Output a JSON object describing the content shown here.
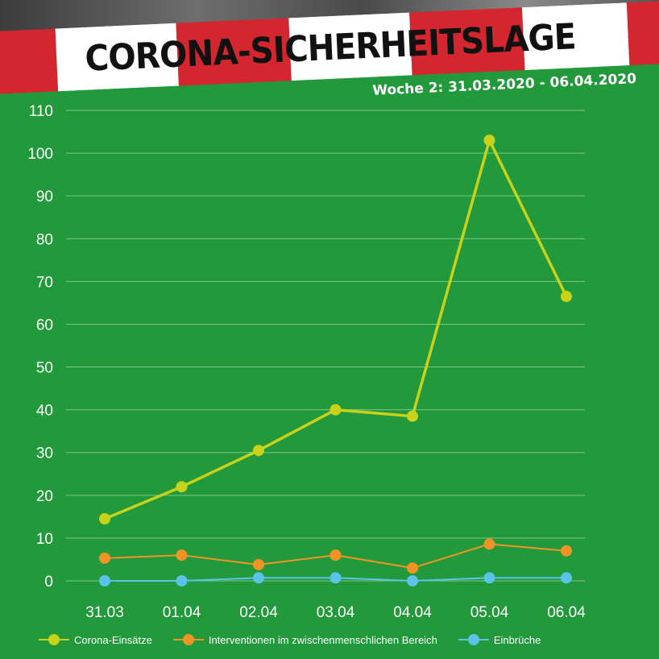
{
  "header": {
    "title": "CORONA-SICHERHEITSLAGE",
    "subtitle": "Woche 2: 31.03.2020 - 06.04.2020"
  },
  "colors": {
    "background": "#22993a",
    "banner_red": "#d3262e",
    "banner_white": "#ffffff",
    "gridline": "#7fc68a"
  },
  "chart_data": {
    "type": "line",
    "title": "Woche 2: 31.03.2020 - 06.04.2020",
    "xlabel": "",
    "ylabel": "",
    "categories": [
      "31.03",
      "01.04",
      "02.04",
      "03.04",
      "04.04",
      "05.04",
      "06.04"
    ],
    "ylim": [
      0,
      110
    ],
    "yticks": [
      0,
      10,
      20,
      30,
      40,
      50,
      60,
      70,
      80,
      90,
      100,
      110
    ],
    "grid": true,
    "legend_position": "bottom",
    "series": [
      {
        "name": "Corona-Einsätze",
        "color": "#c8d21a",
        "values": [
          14.5,
          22,
          30.5,
          40,
          38.5,
          103,
          66.5
        ]
      },
      {
        "name": "Interventionen im zwischenmenschlichen Bereich",
        "color": "#f29425",
        "values": [
          5.3,
          6,
          3.8,
          6,
          3,
          8.6,
          7
        ]
      },
      {
        "name": "Einbrüche",
        "color": "#5bc2e8",
        "values": [
          0,
          0,
          0.7,
          0.7,
          0,
          0.7,
          0.7
        ]
      }
    ]
  }
}
